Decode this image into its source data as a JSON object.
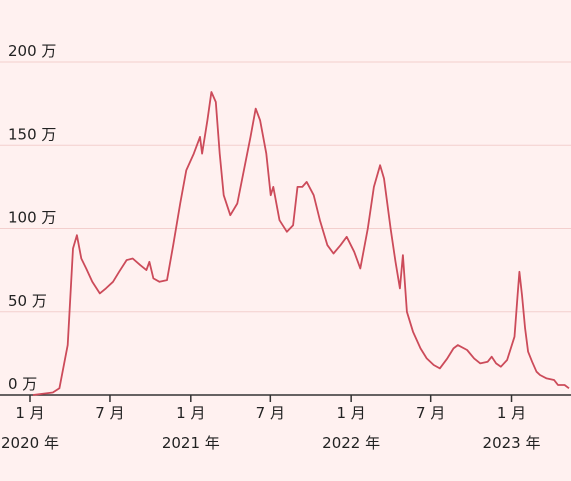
{
  "chart_data": {
    "type": "line",
    "title": "",
    "xlabel": "",
    "ylabel": "",
    "ylim": [
      0,
      2000000
    ],
    "grid": true,
    "y_ticks": [
      {
        "value": 0,
        "label": "0 万"
      },
      {
        "value": 500000,
        "label": "50 万"
      },
      {
        "value": 1000000,
        "label": "100 万"
      },
      {
        "value": 1500000,
        "label": "150 万"
      },
      {
        "value": 2000000,
        "label": "200 万"
      }
    ],
    "x_ticks": [
      {
        "value": "2020-01-01",
        "month": "1 月",
        "year": "2020 年"
      },
      {
        "value": "2020-07-01",
        "month": "7 月",
        "year": ""
      },
      {
        "value": "2021-01-01",
        "month": "1 月",
        "year": "2021 年"
      },
      {
        "value": "2021-07-01",
        "month": "7 月",
        "year": ""
      },
      {
        "value": "2022-01-01",
        "month": "1 月",
        "year": "2022 年"
      },
      {
        "value": "2022-07-01",
        "month": "7 月",
        "year": ""
      },
      {
        "value": "2023-01-01",
        "month": "1 月",
        "year": "2023 年"
      }
    ],
    "series": [
      {
        "color": "#cc4b5a",
        "points": [
          [
            "2020-01-01",
            0
          ],
          [
            "2020-02-15",
            15000
          ],
          [
            "2020-03-01",
            40000
          ],
          [
            "2020-03-20",
            300000
          ],
          [
            "2020-04-01",
            880000
          ],
          [
            "2020-04-10",
            960000
          ],
          [
            "2020-04-20",
            820000
          ],
          [
            "2020-05-01",
            760000
          ],
          [
            "2020-05-15",
            680000
          ],
          [
            "2020-06-01",
            610000
          ],
          [
            "2020-06-15",
            640000
          ],
          [
            "2020-07-01",
            680000
          ],
          [
            "2020-07-15",
            740000
          ],
          [
            "2020-08-01",
            810000
          ],
          [
            "2020-08-15",
            820000
          ],
          [
            "2020-09-01",
            780000
          ],
          [
            "2020-09-15",
            750000
          ],
          [
            "2020-09-22",
            800000
          ],
          [
            "2020-10-01",
            700000
          ],
          [
            "2020-10-15",
            680000
          ],
          [
            "2020-11-01",
            690000
          ],
          [
            "2020-11-15",
            900000
          ],
          [
            "2020-12-01",
            1150000
          ],
          [
            "2020-12-15",
            1350000
          ],
          [
            "2021-01-01",
            1450000
          ],
          [
            "2021-01-15",
            1550000
          ],
          [
            "2021-01-20",
            1450000
          ],
          [
            "2021-02-01",
            1650000
          ],
          [
            "2021-02-10",
            1820000
          ],
          [
            "2021-02-20",
            1760000
          ],
          [
            "2021-03-01",
            1450000
          ],
          [
            "2021-03-10",
            1200000
          ],
          [
            "2021-03-25",
            1080000
          ],
          [
            "2021-04-10",
            1150000
          ],
          [
            "2021-04-25",
            1350000
          ],
          [
            "2021-05-10",
            1550000
          ],
          [
            "2021-05-22",
            1720000
          ],
          [
            "2021-06-01",
            1650000
          ],
          [
            "2021-06-15",
            1450000
          ],
          [
            "2021-06-25",
            1200000
          ],
          [
            "2021-07-01",
            1250000
          ],
          [
            "2021-07-15",
            1050000
          ],
          [
            "2021-08-01",
            980000
          ],
          [
            "2021-08-15",
            1020000
          ],
          [
            "2021-08-25",
            1250000
          ],
          [
            "2021-09-05",
            1250000
          ],
          [
            "2021-09-15",
            1280000
          ],
          [
            "2021-10-01",
            1200000
          ],
          [
            "2021-10-15",
            1050000
          ],
          [
            "2021-11-01",
            900000
          ],
          [
            "2021-11-15",
            850000
          ],
          [
            "2021-12-01",
            900000
          ],
          [
            "2021-12-15",
            950000
          ],
          [
            "2022-01-01",
            860000
          ],
          [
            "2022-01-15",
            760000
          ],
          [
            "2022-02-01",
            1000000
          ],
          [
            "2022-02-15",
            1250000
          ],
          [
            "2022-03-01",
            1380000
          ],
          [
            "2022-03-10",
            1300000
          ],
          [
            "2022-03-25",
            1000000
          ],
          [
            "2022-04-05",
            800000
          ],
          [
            "2022-04-15",
            640000
          ],
          [
            "2022-04-22",
            840000
          ],
          [
            "2022-05-01",
            500000
          ],
          [
            "2022-05-15",
            380000
          ],
          [
            "2022-06-01",
            280000
          ],
          [
            "2022-06-15",
            220000
          ],
          [
            "2022-07-01",
            180000
          ],
          [
            "2022-07-15",
            160000
          ],
          [
            "2022-08-01",
            220000
          ],
          [
            "2022-08-15",
            280000
          ],
          [
            "2022-08-25",
            300000
          ],
          [
            "2022-09-15",
            270000
          ],
          [
            "2022-10-01",
            220000
          ],
          [
            "2022-10-15",
            190000
          ],
          [
            "2022-11-01",
            200000
          ],
          [
            "2022-11-10",
            230000
          ],
          [
            "2022-11-20",
            190000
          ],
          [
            "2022-12-01",
            170000
          ],
          [
            "2022-12-15",
            210000
          ],
          [
            "2023-01-01",
            350000
          ],
          [
            "2023-01-08",
            600000
          ],
          [
            "2023-01-12",
            740000
          ],
          [
            "2023-01-18",
            600000
          ],
          [
            "2023-01-25",
            400000
          ],
          [
            "2023-02-01",
            260000
          ],
          [
            "2023-02-10",
            200000
          ],
          [
            "2023-02-20",
            140000
          ],
          [
            "2023-02-28",
            120000
          ],
          [
            "2023-03-15",
            100000
          ],
          [
            "2023-04-01",
            90000
          ],
          [
            "2023-04-10",
            60000
          ],
          [
            "2023-04-25",
            60000
          ],
          [
            "2023-05-05",
            40000
          ]
        ]
      }
    ]
  }
}
